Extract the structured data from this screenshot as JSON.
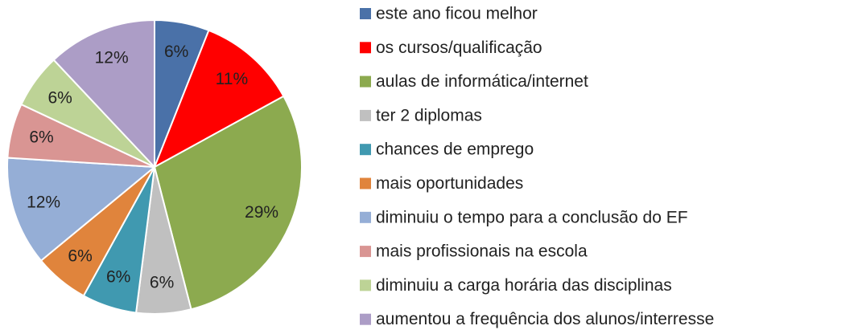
{
  "chart_data": {
    "type": "pie",
    "categories": [
      "este ano ficou melhor",
      "os cursos/qualificação",
      "aulas de informática/internet",
      "ter 2 diplomas",
      "chances de emprego",
      "mais oportunidades",
      "diminuiu o tempo para a conclusão do EF",
      "mais profissionais na escola",
      "diminuiu a carga horária das disciplinas",
      "aumentou a frequência dos alunos/interresse"
    ],
    "values": [
      6,
      11,
      29,
      6,
      6,
      6,
      12,
      6,
      6,
      12
    ],
    "value_labels": [
      "6%",
      "11%",
      "29%",
      "6%",
      "6%",
      "6%",
      "12%",
      "6%",
      "6%",
      "12%"
    ],
    "colors": [
      "#4a71a8",
      "#ff0000",
      "#8caa4f",
      "#c0c0c0",
      "#4099b0",
      "#e0843c",
      "#95aed6",
      "#d99593",
      "#bdd396",
      "#ac9dc6"
    ],
    "legend": "right"
  }
}
